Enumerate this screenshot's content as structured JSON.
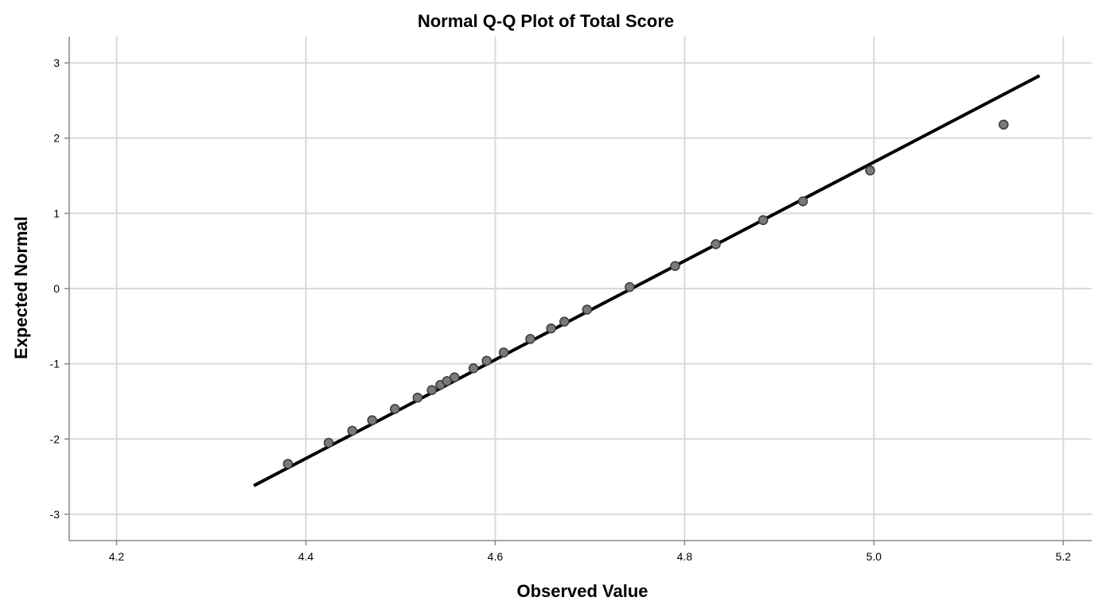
{
  "chart_data": {
    "type": "scatter",
    "title": "Normal Q-Q Plot of Total Score",
    "xlabel": "Observed Value",
    "ylabel": "Expected Normal",
    "xlim": [
      4.15,
      5.23
    ],
    "ylim": [
      -3.35,
      3.35
    ],
    "x_ticks": [
      "4.2",
      "4.4",
      "4.6",
      "4.8",
      "5.0",
      "5.2"
    ],
    "y_ticks": [
      "3",
      "2",
      "1",
      "0",
      "-1",
      "-2",
      "-3"
    ],
    "grid": true,
    "series": [
      {
        "values": [
          {
            "x": 4.381,
            "y": -2.33
          },
          {
            "x": 4.424,
            "y": -2.05
          },
          {
            "x": 4.449,
            "y": -1.89
          },
          {
            "x": 4.47,
            "y": -1.75
          },
          {
            "x": 4.494,
            "y": -1.6
          },
          {
            "x": 4.518,
            "y": -1.45
          },
          {
            "x": 4.533,
            "y": -1.35
          },
          {
            "x": 4.542,
            "y": -1.28
          },
          {
            "x": 4.549,
            "y": -1.23
          },
          {
            "x": 4.557,
            "y": -1.18
          },
          {
            "x": 4.577,
            "y": -1.06
          },
          {
            "x": 4.591,
            "y": -0.96
          },
          {
            "x": 4.609,
            "y": -0.85
          },
          {
            "x": 4.637,
            "y": -0.67
          },
          {
            "x": 4.659,
            "y": -0.53
          },
          {
            "x": 4.673,
            "y": -0.44
          },
          {
            "x": 4.697,
            "y": -0.28
          },
          {
            "x": 4.742,
            "y": 0.02
          },
          {
            "x": 4.79,
            "y": 0.3
          },
          {
            "x": 4.833,
            "y": 0.59
          },
          {
            "x": 4.883,
            "y": 0.91
          },
          {
            "x": 4.925,
            "y": 1.16
          },
          {
            "x": 4.996,
            "y": 1.57
          },
          {
            "x": 5.137,
            "y": 2.18
          }
        ]
      }
    ],
    "reference_line": {
      "x": [
        4.345,
        5.175
      ],
      "y": [
        -2.62,
        2.83
      ]
    },
    "colors": {
      "point_fill": "#7a7a7a",
      "point_stroke": "#3a3a3a",
      "line": "#000000",
      "grid": "#d9d9d9",
      "axis": "#888888"
    }
  }
}
